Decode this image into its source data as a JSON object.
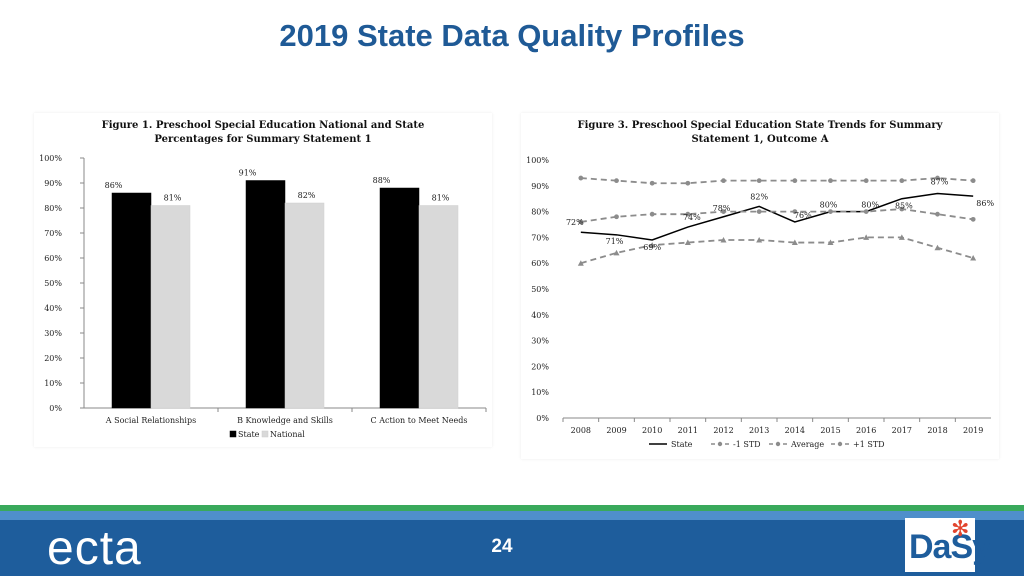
{
  "slide": {
    "title": "2019 State Data Quality Profiles",
    "page_number": "24"
  },
  "footer": {
    "left_logo": "ecta",
    "right_logo": "DaSy"
  },
  "colors": {
    "title": "#1f5a96",
    "footer_green": "#39a95b",
    "footer_blue": "#1e5d9c",
    "state": "#000000",
    "national": "#d9d9d9",
    "trend_dash": "#8c8c8c"
  },
  "chart_data": [
    {
      "type": "bar",
      "title": "Figure 1. Preschool Special Education National and State Percentages for Summary Statement 1",
      "title_lines": [
        "Figure 1. Preschool Special Education National and State",
        "Percentages for Summary Statement 1"
      ],
      "categories": [
        "A Social Relationships",
        "B Knowledge and Skills",
        "C Action to Meet Needs"
      ],
      "series": [
        {
          "name": "State",
          "values": [
            86,
            91,
            88
          ],
          "labels": [
            "86%",
            "91%",
            "88%"
          ],
          "color": "#000000"
        },
        {
          "name": "National",
          "values": [
            81,
            82,
            81
          ],
          "labels": [
            "81%",
            "82%",
            "81%"
          ],
          "color": "#d9d9d9"
        }
      ],
      "ylim": [
        0,
        100
      ],
      "yticks": [
        "0%",
        "10%",
        "20%",
        "30%",
        "40%",
        "50%",
        "60%",
        "70%",
        "80%",
        "90%",
        "100%"
      ],
      "legend": "bottom",
      "grid": false
    },
    {
      "type": "line",
      "title": "Figure 3. Preschool Special Education State Trends for Summary Statement 1, Outcome A",
      "title_lines": [
        "Figure 3. Preschool Special Education State Trends for Summary",
        "Statement 1, Outcome A"
      ],
      "x": [
        "2008",
        "2009",
        "2010",
        "2011",
        "2012",
        "2013",
        "2014",
        "2015",
        "2016",
        "2017",
        "2018",
        "2019"
      ],
      "series": [
        {
          "name": "State",
          "values": [
            72,
            71,
            69,
            74,
            78,
            82,
            76,
            80,
            80,
            85,
            87,
            86
          ],
          "style": "solid"
        },
        {
          "name": "-1 STD",
          "values": [
            60,
            64,
            67,
            68,
            69,
            69,
            68,
            68,
            70,
            70,
            66,
            62
          ],
          "style": "dashed"
        },
        {
          "name": "Average",
          "values": [
            76,
            78,
            79,
            79,
            80,
            80,
            80,
            80,
            80,
            81,
            79,
            77
          ],
          "style": "dashed"
        },
        {
          "name": "+1 STD",
          "values": [
            93,
            92,
            91,
            91,
            92,
            92,
            92,
            92,
            92,
            92,
            93,
            92
          ],
          "style": "dashed"
        }
      ],
      "value_labels": [
        {
          "text": "72%",
          "year": "2008",
          "value": 72
        },
        {
          "text": "71%",
          "year": "2009",
          "value": 71
        },
        {
          "text": "69%",
          "year": "2010",
          "value": 69
        },
        {
          "text": "74%",
          "year": "2011",
          "value": 74
        },
        {
          "text": "78%",
          "year": "2012",
          "value": 78
        },
        {
          "text": "82%",
          "year": "2013",
          "value": 82
        },
        {
          "text": "76%",
          "year": "2014",
          "value": 76
        },
        {
          "text": "80%",
          "year": "2015",
          "value": 80
        },
        {
          "text": "80%",
          "year": "2016",
          "value": 80
        },
        {
          "text": "85%",
          "year": "2017",
          "value": 85
        },
        {
          "text": "87%",
          "year": "2018",
          "value": 87
        },
        {
          "text": "86%",
          "year": "2019",
          "value": 86
        }
      ],
      "ylim": [
        0,
        100
      ],
      "yticks": [
        "0%",
        "10%",
        "20%",
        "30%",
        "40%",
        "50%",
        "60%",
        "70%",
        "80%",
        "90%",
        "100%"
      ],
      "legend": "bottom",
      "grid": false
    }
  ]
}
